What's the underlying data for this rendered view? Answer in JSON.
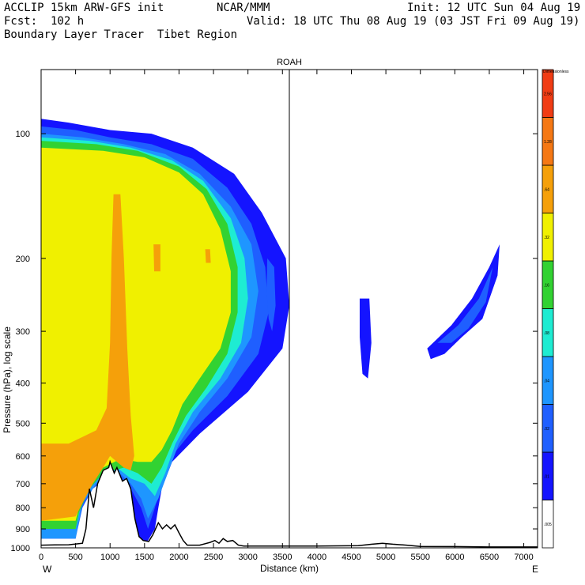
{
  "header": {
    "model": "ACCLIP 15km ARW-GFS init",
    "org": "NCAR/MMM",
    "init": "Init: 12 UTC Sun 04 Aug 19",
    "fcst": "Fcst:  102 h",
    "valid": "Valid: 18 UTC Thu 08 Aug 19 (03 JST Fri 09 Aug 19)",
    "product": "Boundary Layer Tracer  Tibet Region"
  },
  "chart_data": {
    "type": "heatmap",
    "title": "ROAH",
    "xlabel": "Distance (km)",
    "ylabel": "Pressure (hPa), log scale",
    "xlim": [
      0,
      7200
    ],
    "ylim": [
      1000,
      70
    ],
    "yscale": "log",
    "x_ticks": [
      0,
      500,
      1000,
      1500,
      2000,
      2500,
      3000,
      3500,
      4000,
      4500,
      5000,
      5500,
      6000,
      6500,
      7000
    ],
    "y_ticks": [
      100,
      200,
      300,
      400,
      500,
      600,
      700,
      800,
      900,
      1000
    ],
    "x_ends": {
      "left": "W",
      "right": "E"
    },
    "marker_line_x": 3600,
    "colorbar": {
      "title": "Dimensionless",
      "levels": [
        ".005",
        ".01",
        ".02",
        ".04",
        ".08",
        ".16",
        ".32",
        ".64",
        "1.28",
        "2.56"
      ],
      "colors": [
        "#ffffff",
        "#1414ff",
        "#1f5fff",
        "#1e96ff",
        "#1eecd2",
        "#32d232",
        "#f0f000",
        "#f5a00a",
        "#f57814",
        "#f03c14"
      ]
    },
    "fields": [
      {
        "level": 1,
        "outline": [
          [
            0,
            92
          ],
          [
            400,
            94
          ],
          [
            1000,
            98
          ],
          [
            1600,
            100
          ],
          [
            2200,
            108
          ],
          [
            2800,
            125
          ],
          [
            3200,
            155
          ],
          [
            3550,
            200
          ],
          [
            3600,
            260
          ],
          [
            3500,
            330
          ],
          [
            3000,
            420
          ],
          [
            2300,
            530
          ],
          [
            1900,
            620
          ],
          [
            1750,
            720
          ],
          [
            1700,
            800
          ],
          [
            1650,
            900
          ],
          [
            1550,
            960
          ],
          [
            1400,
            980
          ],
          [
            1300,
            800
          ],
          [
            1200,
            700
          ],
          [
            1000,
            640
          ],
          [
            700,
            700
          ],
          [
            600,
            760
          ],
          [
            500,
            950
          ],
          [
            0,
            950
          ]
        ]
      },
      {
        "level": 1,
        "outline": [
          [
            3180,
            175
          ],
          [
            3380,
            185
          ],
          [
            3460,
            230
          ],
          [
            3470,
            300
          ],
          [
            3400,
            340
          ],
          [
            3320,
            320
          ],
          [
            3250,
            260
          ],
          [
            3200,
            210
          ]
        ]
      },
      {
        "level": 1,
        "outline": [
          [
            4620,
            250
          ],
          [
            4760,
            250
          ],
          [
            4790,
            320
          ],
          [
            4740,
            390
          ],
          [
            4660,
            380
          ],
          [
            4620,
            310
          ]
        ]
      },
      {
        "level": 1,
        "outline": [
          [
            5600,
            330
          ],
          [
            5950,
            290
          ],
          [
            6250,
            250
          ],
          [
            6500,
            210
          ],
          [
            6650,
            185
          ],
          [
            6620,
            220
          ],
          [
            6400,
            280
          ],
          [
            6100,
            310
          ],
          [
            5850,
            340
          ],
          [
            5650,
            350
          ]
        ]
      },
      {
        "level": 2,
        "outline": [
          [
            0,
            96
          ],
          [
            500,
            98
          ],
          [
            1000,
            102
          ],
          [
            1600,
            106
          ],
          [
            2200,
            115
          ],
          [
            2700,
            135
          ],
          [
            3050,
            165
          ],
          [
            3250,
            210
          ],
          [
            3300,
            270
          ],
          [
            3150,
            340
          ],
          [
            2700,
            430
          ],
          [
            2200,
            520
          ],
          [
            1900,
            600
          ],
          [
            1750,
            700
          ],
          [
            1650,
            800
          ],
          [
            1550,
            900
          ],
          [
            1450,
            800
          ],
          [
            1300,
            720
          ],
          [
            1050,
            660
          ],
          [
            750,
            720
          ],
          [
            600,
            800
          ],
          [
            500,
            950
          ],
          [
            0,
            950
          ]
        ]
      },
      {
        "level": 2,
        "outline": [
          [
            3280,
            200
          ],
          [
            3380,
            210
          ],
          [
            3400,
            260
          ],
          [
            3350,
            300
          ],
          [
            3300,
            280
          ],
          [
            3270,
            240
          ]
        ]
      },
      {
        "level": 2,
        "outline": [
          [
            5750,
            320
          ],
          [
            6050,
            290
          ],
          [
            6350,
            250
          ],
          [
            6550,
            210
          ],
          [
            6450,
            255
          ],
          [
            6200,
            295
          ],
          [
            5950,
            320
          ]
        ]
      },
      {
        "level": 3,
        "outline": [
          [
            0,
            100
          ],
          [
            600,
            102
          ],
          [
            1200,
            106
          ],
          [
            1800,
            112
          ],
          [
            2300,
            125
          ],
          [
            2750,
            150
          ],
          [
            3050,
            185
          ],
          [
            3150,
            240
          ],
          [
            3050,
            310
          ],
          [
            2700,
            390
          ],
          [
            2300,
            470
          ],
          [
            2000,
            560
          ],
          [
            1850,
            650
          ],
          [
            1700,
            760
          ],
          [
            1550,
            850
          ],
          [
            1450,
            760
          ],
          [
            1300,
            700
          ],
          [
            1100,
            650
          ],
          [
            800,
            700
          ],
          [
            600,
            780
          ],
          [
            500,
            950
          ],
          [
            0,
            950
          ]
        ]
      },
      {
        "level": 4,
        "outline": [
          [
            0,
            102
          ],
          [
            700,
            104
          ],
          [
            1300,
            108
          ],
          [
            1900,
            116
          ],
          [
            2350,
            130
          ],
          [
            2750,
            160
          ],
          [
            2950,
            200
          ],
          [
            3000,
            250
          ],
          [
            2900,
            320
          ],
          [
            2600,
            390
          ],
          [
            2200,
            470
          ],
          [
            1950,
            560
          ],
          [
            1800,
            660
          ],
          [
            1650,
            750
          ],
          [
            1500,
            700
          ],
          [
            1300,
            680
          ],
          [
            1100,
            640
          ],
          [
            800,
            680
          ],
          [
            600,
            760
          ],
          [
            500,
            900
          ],
          [
            0,
            900
          ]
        ]
      },
      {
        "level": 5,
        "outline": [
          [
            0,
            104
          ],
          [
            800,
            106
          ],
          [
            1400,
            110
          ],
          [
            2000,
            120
          ],
          [
            2400,
            136
          ],
          [
            2700,
            165
          ],
          [
            2850,
            210
          ],
          [
            2850,
            270
          ],
          [
            2700,
            340
          ],
          [
            2400,
            410
          ],
          [
            2100,
            480
          ],
          [
            1900,
            560
          ],
          [
            1750,
            640
          ],
          [
            1600,
            700
          ],
          [
            1400,
            660
          ],
          [
            1200,
            640
          ],
          [
            900,
            660
          ],
          [
            700,
            720
          ],
          [
            550,
            820
          ],
          [
            500,
            900
          ],
          [
            0,
            900
          ]
        ]
      },
      {
        "level": 6,
        "outline": [
          [
            0,
            108
          ],
          [
            900,
            110
          ],
          [
            1500,
            114
          ],
          [
            2000,
            124
          ],
          [
            2350,
            140
          ],
          [
            2600,
            170
          ],
          [
            2750,
            215
          ],
          [
            2750,
            270
          ],
          [
            2600,
            330
          ],
          [
            2300,
            390
          ],
          [
            2050,
            450
          ],
          [
            1900,
            520
          ],
          [
            1750,
            580
          ],
          [
            1600,
            620
          ],
          [
            1400,
            620
          ],
          [
            1150,
            610
          ],
          [
            900,
            640
          ],
          [
            700,
            700
          ],
          [
            550,
            800
          ],
          [
            500,
            860
          ],
          [
            0,
            860
          ]
        ]
      },
      {
        "level": 7,
        "outline": [
          [
            1050,
            140
          ],
          [
            1150,
            140
          ],
          [
            1200,
            200
          ],
          [
            1250,
            330
          ],
          [
            1300,
            480
          ],
          [
            1350,
            600
          ],
          [
            1300,
            650
          ],
          [
            1200,
            640
          ],
          [
            1100,
            620
          ],
          [
            1000,
            600
          ],
          [
            900,
            640
          ],
          [
            750,
            700
          ],
          [
            600,
            780
          ],
          [
            500,
            840
          ],
          [
            0,
            860
          ],
          [
            0,
            560
          ],
          [
            200,
            560
          ],
          [
            400,
            560
          ],
          [
            600,
            540
          ],
          [
            800,
            520
          ],
          [
            950,
            460
          ],
          [
            1000,
            320
          ],
          [
            1020,
            200
          ]
        ]
      },
      {
        "level": 7,
        "outline": [
          [
            1630,
            185
          ],
          [
            1730,
            185
          ],
          [
            1730,
            215
          ],
          [
            1640,
            215
          ]
        ]
      },
      {
        "level": 7,
        "outline": [
          [
            2380,
            190
          ],
          [
            2450,
            190
          ],
          [
            2460,
            205
          ],
          [
            2390,
            205
          ]
        ]
      }
    ],
    "terrain": [
      [
        0,
        985
      ],
      [
        200,
        984
      ],
      [
        400,
        983
      ],
      [
        600,
        975
      ],
      [
        650,
        900
      ],
      [
        700,
        720
      ],
      [
        760,
        800
      ],
      [
        820,
        700
      ],
      [
        900,
        650
      ],
      [
        980,
        640
      ],
      [
        1000,
        620
      ],
      [
        1060,
        660
      ],
      [
        1100,
        640
      ],
      [
        1180,
        690
      ],
      [
        1240,
        680
      ],
      [
        1300,
        720
      ],
      [
        1360,
        850
      ],
      [
        1420,
        940
      ],
      [
        1480,
        960
      ],
      [
        1560,
        965
      ],
      [
        1620,
        930
      ],
      [
        1700,
        870
      ],
      [
        1760,
        900
      ],
      [
        1820,
        880
      ],
      [
        1880,
        900
      ],
      [
        1940,
        880
      ],
      [
        2000,
        920
      ],
      [
        2060,
        960
      ],
      [
        2120,
        985
      ],
      [
        2300,
        985
      ],
      [
        2450,
        970
      ],
      [
        2520,
        960
      ],
      [
        2580,
        975
      ],
      [
        2640,
        950
      ],
      [
        2700,
        965
      ],
      [
        2780,
        960
      ],
      [
        2860,
        985
      ],
      [
        2940,
        990
      ],
      [
        3500,
        990
      ],
      [
        4000,
        990
      ],
      [
        4600,
        988
      ],
      [
        4800,
        980
      ],
      [
        4950,
        975
      ],
      [
        5100,
        980
      ],
      [
        5300,
        985
      ],
      [
        5500,
        992
      ],
      [
        6000,
        993
      ],
      [
        6500,
        995
      ],
      [
        7000,
        995
      ],
      [
        7200,
        995
      ]
    ]
  }
}
